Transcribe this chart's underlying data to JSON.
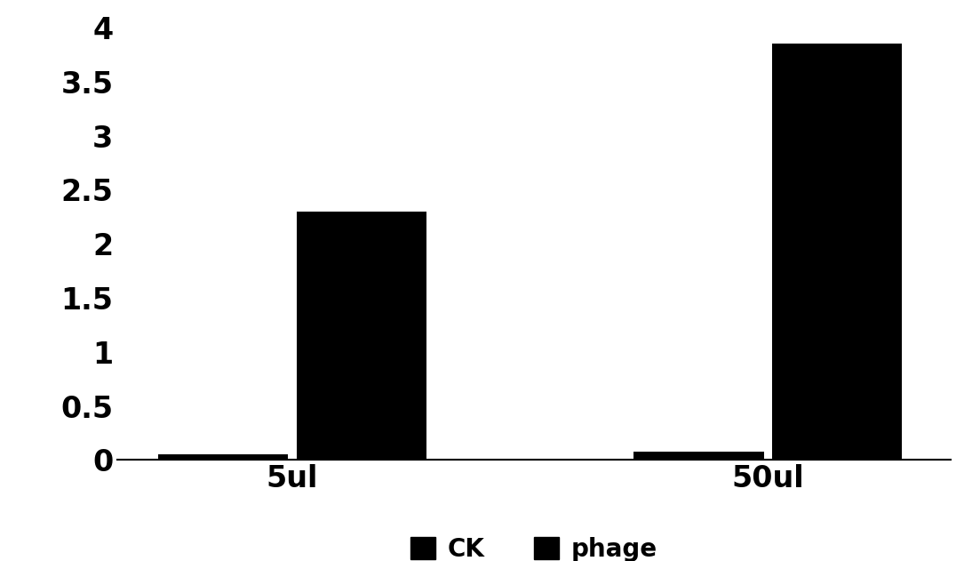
{
  "groups": [
    "5ul",
    "50ul"
  ],
  "series": [
    "CK",
    "phage"
  ],
  "values": {
    "CK": [
      0.05,
      0.08
    ],
    "phage": [
      2.3,
      3.85
    ]
  },
  "bar_color": "#000000",
  "ylim": [
    0,
    4.1
  ],
  "yticks": [
    0,
    0.5,
    1,
    1.5,
    2,
    2.5,
    3,
    3.5,
    4
  ],
  "ytick_labels": [
    "0",
    "0.5",
    "1",
    "1.5",
    "2",
    "2.5",
    "3",
    "3.5",
    "4"
  ],
  "background_color": "#ffffff",
  "bar_width": 0.32,
  "legend_labels": [
    "CK",
    "phage"
  ],
  "tick_fontsize": 24,
  "label_fontsize": 24,
  "legend_fontsize": 20
}
